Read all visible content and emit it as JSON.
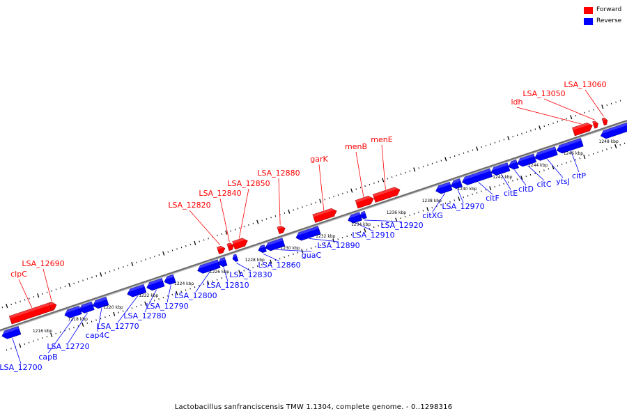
{
  "legend": {
    "forward_label": "Forward",
    "reverse_label": "Reverse",
    "forward_color": "#ff0000",
    "reverse_color": "#0000ff"
  },
  "caption": "Lactobacillus sanfranciscensis TMW 1.1304, complete genome. - 0..1298316",
  "scale_labels": [
    "1216 kbp",
    "1218 kbp",
    "1220 kbp",
    "1222 kbp",
    "1224 kbp",
    "1226 kbp",
    "1228 kbp",
    "1230 kbp",
    "1232 kbp",
    "1234 kbp",
    "1236 kbp",
    "1238 kbp",
    "1240 kbp",
    "1242 kbp",
    "1244 kbp",
    "1246 kbp",
    "1248 kbp"
  ],
  "forward_genes": [
    "clpC",
    "LSA_12690",
    "LSA_12820",
    "LSA_12840",
    "LSA_12850",
    "LSA_12880",
    "garK",
    "menB",
    "menE",
    "ldh",
    "LSA_13050",
    "LSA_13060"
  ],
  "reverse_genes": [
    "LSA_12700",
    "capB",
    "LSA_12720",
    "cap4C",
    "LSA_12770",
    "LSA_12780",
    "LSA_12790",
    "LSA_12800",
    "LSA_12810",
    "LSA_12830",
    "LSA_12860",
    "guaC",
    "LSA_12890",
    "LSA_12910",
    "LSA_12920",
    "citXG",
    "LSA_12970",
    "citF",
    "citE",
    "citD",
    "citC",
    "ytsJ",
    "citP"
  ]
}
